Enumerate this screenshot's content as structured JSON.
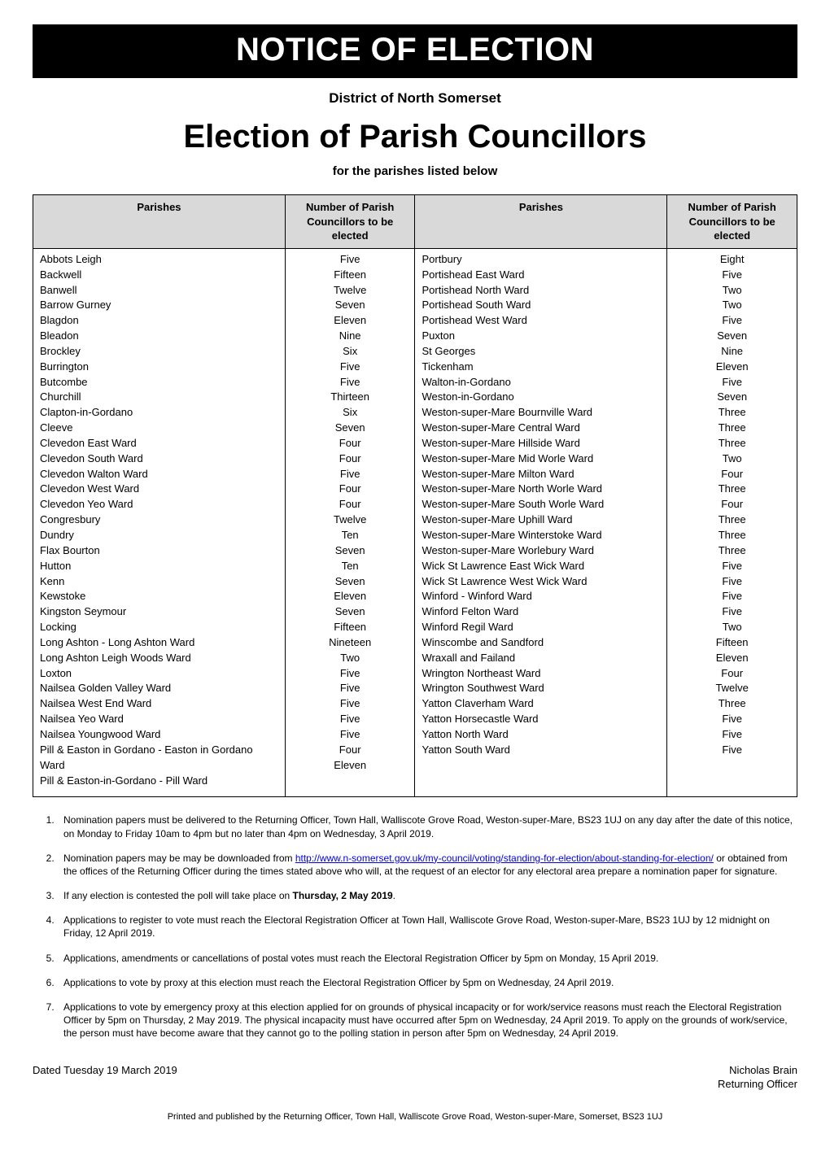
{
  "banner_title": "NOTICE OF ELECTION",
  "district_line": "District of North Somerset",
  "main_title": "Election of Parish Councillors",
  "subtitle": "for the parishes listed below",
  "table_headers": {
    "parishes": "Parishes",
    "count": "Number of Parish Councillors to be elected"
  },
  "colors": {
    "banner_bg": "#000000",
    "banner_fg": "#ffffff",
    "header_bg": "#d9d9d9",
    "border": "#000000",
    "link": "#0000ee"
  },
  "left_parishes": [
    {
      "name": "Abbots Leigh",
      "count": "Five"
    },
    {
      "name": "Backwell",
      "count": "Fifteen"
    },
    {
      "name": "Banwell",
      "count": "Twelve"
    },
    {
      "name": "Barrow Gurney",
      "count": "Seven"
    },
    {
      "name": "Blagdon",
      "count": "Eleven"
    },
    {
      "name": "Bleadon",
      "count": "Nine"
    },
    {
      "name": "Brockley",
      "count": "Six"
    },
    {
      "name": "Burrington",
      "count": "Five"
    },
    {
      "name": "Butcombe",
      "count": "Five"
    },
    {
      "name": "Churchill",
      "count": "Thirteen"
    },
    {
      "name": "Clapton-in-Gordano",
      "count": "Six"
    },
    {
      "name": "Cleeve",
      "count": "Seven"
    },
    {
      "name": "Clevedon East Ward",
      "count": "Four"
    },
    {
      "name": "Clevedon South Ward",
      "count": "Four"
    },
    {
      "name": "Clevedon Walton Ward",
      "count": "Five"
    },
    {
      "name": "Clevedon West Ward",
      "count": "Four"
    },
    {
      "name": "Clevedon Yeo Ward",
      "count": "Four"
    },
    {
      "name": "Congresbury",
      "count": "Twelve"
    },
    {
      "name": "Dundry",
      "count": "Ten"
    },
    {
      "name": "Flax Bourton",
      "count": "Seven"
    },
    {
      "name": "Hutton",
      "count": "Ten"
    },
    {
      "name": "Kenn",
      "count": "Seven"
    },
    {
      "name": "Kewstoke",
      "count": "Eleven"
    },
    {
      "name": "Kingston Seymour",
      "count": "Seven"
    },
    {
      "name": "Locking",
      "count": "Fifteen"
    },
    {
      "name": "Long Ashton - Long Ashton Ward",
      "count": "Nineteen"
    },
    {
      "name": "Long Ashton Leigh Woods Ward",
      "count": "Two"
    },
    {
      "name": "Loxton",
      "count": "Five"
    },
    {
      "name": "Nailsea Golden Valley Ward",
      "count": "Five"
    },
    {
      "name": "Nailsea West End Ward",
      "count": "Five"
    },
    {
      "name": "Nailsea Yeo Ward",
      "count": "Five"
    },
    {
      "name": "Nailsea Youngwood Ward",
      "count": "Five"
    },
    {
      "name": "Pill & Easton in Gordano - Easton in Gordano Ward",
      "count": "Four"
    },
    {
      "name": "Pill & Easton-in-Gordano - Pill Ward",
      "count": "Eleven"
    }
  ],
  "right_parishes": [
    {
      "name": "Portbury",
      "count": "Eight"
    },
    {
      "name": "Portishead East Ward",
      "count": "Five"
    },
    {
      "name": "Portishead North Ward",
      "count": "Two"
    },
    {
      "name": "Portishead South Ward",
      "count": "Two"
    },
    {
      "name": "Portishead West Ward",
      "count": "Five"
    },
    {
      "name": "Puxton",
      "count": "Seven"
    },
    {
      "name": "St Georges",
      "count": "Nine"
    },
    {
      "name": "Tickenham",
      "count": "Eleven"
    },
    {
      "name": "Walton-in-Gordano",
      "count": "Five"
    },
    {
      "name": "Weston-in-Gordano",
      "count": "Seven"
    },
    {
      "name": "Weston-super-Mare Bournville Ward",
      "count": "Three"
    },
    {
      "name": "Weston-super-Mare Central Ward",
      "count": "Three"
    },
    {
      "name": "Weston-super-Mare Hillside Ward",
      "count": "Three"
    },
    {
      "name": "Weston-super-Mare Mid Worle Ward",
      "count": "Two"
    },
    {
      "name": "Weston-super-Mare Milton Ward",
      "count": "Four"
    },
    {
      "name": "Weston-super-Mare North Worle Ward",
      "count": "Three"
    },
    {
      "name": "Weston-super-Mare South Worle Ward",
      "count": "Four"
    },
    {
      "name": "Weston-super-Mare Uphill Ward",
      "count": "Three"
    },
    {
      "name": "Weston-super-Mare Winterstoke Ward",
      "count": "Three"
    },
    {
      "name": "Weston-super-Mare Worlebury Ward",
      "count": "Three"
    },
    {
      "name": "Wick St Lawrence East Wick Ward",
      "count": "Five"
    },
    {
      "name": "Wick St Lawrence West Wick Ward",
      "count": "Five"
    },
    {
      "name": "Winford - Winford Ward",
      "count": "Five"
    },
    {
      "name": "Winford Felton Ward",
      "count": "Five"
    },
    {
      "name": "Winford Regil Ward",
      "count": "Two"
    },
    {
      "name": "Winscombe and Sandford",
      "count": "Fifteen"
    },
    {
      "name": "Wraxall and Failand",
      "count": "Eleven"
    },
    {
      "name": "Wrington Northeast Ward",
      "count": "Four"
    },
    {
      "name": "Wrington Southwest Ward",
      "count": "Twelve"
    },
    {
      "name": "Yatton Claverham Ward",
      "count": "Three"
    },
    {
      "name": "Yatton Horsecastle Ward",
      "count": "Five"
    },
    {
      "name": "Yatton North Ward",
      "count": "Five"
    },
    {
      "name": "Yatton South Ward",
      "count": "Five"
    }
  ],
  "notes": {
    "n1": "Nomination papers must be delivered to the Returning Officer, Town Hall, Walliscote Grove Road, Weston-super-Mare, BS23 1UJ on any day after the date of this notice, on Monday to Friday 10am to 4pm but no later than 4pm on Wednesday, 3 April 2019.",
    "n2_pre": "Nomination papers may be may be downloaded from ",
    "n2_link": "http://www.n-somerset.gov.uk/my-council/voting/standing-for-election/about-standing-for-election/",
    "n2_post": " or obtained from the offices of the Returning Officer during the times stated above who will, at the request of an elector for any electoral area prepare a nomination paper for signature.",
    "n3_pre": "If any election is contested the poll will take place on ",
    "n3_bold": "Thursday, 2 May 2019",
    "n3_post": ".",
    "n4": "Applications to register to vote must reach the Electoral Registration Officer at Town Hall, Walliscote Grove Road, Weston-super-Mare, BS23 1UJ by 12 midnight on Friday, 12 April 2019.",
    "n5": "Applications, amendments or cancellations of postal votes must reach the Electoral Registration Officer by 5pm on Monday, 15 April 2019.",
    "n6": "Applications to vote by proxy at this election must reach the Electoral Registration Officer by 5pm on Wednesday, 24 April 2019.",
    "n7": "Applications to vote by emergency proxy at this election applied for on grounds of physical incapacity or for work/service reasons must reach the Electoral Registration Officer by 5pm on Thursday, 2 May 2019.  The physical incapacity must have occurred after 5pm on Wednesday, 24 April 2019.  To apply on the grounds of work/service, the person must have become aware that they cannot go to the polling station in person after 5pm on Wednesday, 24 April 2019."
  },
  "footer": {
    "dated": "Dated Tuesday 19 March 2019",
    "name": "Nicholas Brain",
    "role": "Returning Officer"
  },
  "print_line": "Printed and published by the Returning Officer, Town Hall, Walliscote Grove Road, Weston-super-Mare, Somerset, BS23 1UJ"
}
